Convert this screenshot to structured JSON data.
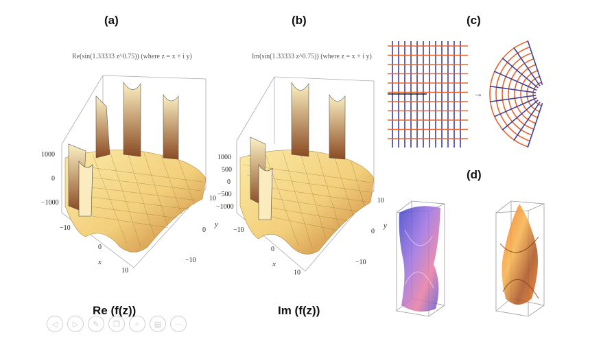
{
  "panels": {
    "a": {
      "label": "(a)",
      "plot_title": "Re(sin(1.33333 z^0.75)) (where z = x + i y)",
      "z_ticks": [
        "1000",
        "0",
        "−1000"
      ],
      "x_ticks": [
        "−10",
        "0",
        "10"
      ],
      "y_ticks": [
        "10",
        "0",
        "−10"
      ],
      "x_axis_name": "x",
      "y_axis_name": "y",
      "caption": "Re (f(z))"
    },
    "b": {
      "label": "(b)",
      "plot_title": "Im(sin(1.33333 z^0.75)) (where z = x + i y)",
      "z_ticks": [
        "1000",
        "500",
        "0",
        "−500",
        "−1000"
      ],
      "x_ticks": [
        "−10",
        "0",
        "10"
      ],
      "y_ticks": [
        "10",
        "0",
        "−10"
      ],
      "x_axis_name": "x",
      "y_axis_name": "y",
      "caption": "Im (f(z))"
    },
    "c": {
      "label": "(c)",
      "arrow": "→"
    },
    "d": {
      "label": "(d)"
    }
  },
  "toolbar": {
    "buttons": [
      {
        "icon": "previous-icon",
        "glyph": "◁"
      },
      {
        "icon": "next-icon",
        "glyph": "▷"
      },
      {
        "icon": "pen-icon",
        "glyph": "✎"
      },
      {
        "icon": "copy-icon",
        "glyph": "❐"
      },
      {
        "icon": "zoom-icon",
        "glyph": "⌕"
      },
      {
        "icon": "screen-icon",
        "glyph": "▤"
      },
      {
        "icon": "more-icon",
        "glyph": "⋯"
      }
    ]
  },
  "colors": {
    "surface_light": "#f6dc8c",
    "surface_dark": "#c7863a",
    "grid_orange": "#e8632a",
    "grid_blue": "#3c3f9a",
    "violet": "#6a4bd0",
    "orange_solid": "#f07a1e"
  }
}
